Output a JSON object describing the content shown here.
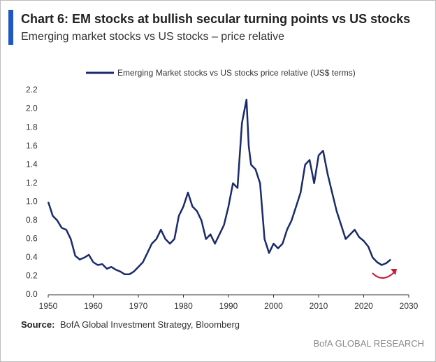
{
  "chart_data": {
    "type": "line",
    "title": "Chart 6: EM stocks at bullish secular turning points vs US stocks",
    "subtitle": "Emerging market stocks vs US stocks – price relative",
    "source_label": "Source:",
    "source": "BofA Global Investment Strategy, Bloomberg",
    "brand": "BofA GLOBAL RESEARCH",
    "legend": "top",
    "grid": false,
    "x": [
      1950,
      1951,
      1952,
      1953,
      1954,
      1955,
      1956,
      1957,
      1958,
      1959,
      1960,
      1961,
      1962,
      1963,
      1964,
      1965,
      1966,
      1967,
      1968,
      1969,
      1970,
      1971,
      1972,
      1973,
      1974,
      1975,
      1976,
      1977,
      1978,
      1979,
      1980,
      1981,
      1982,
      1983,
      1984,
      1985,
      1986,
      1987,
      1988,
      1989,
      1990,
      1991,
      1992,
      1993,
      1994,
      1994.5,
      1995,
      1996,
      1997,
      1998,
      1999,
      2000,
      2001,
      2002,
      2003,
      2004,
      2005,
      2006,
      2007,
      2008,
      2009,
      2010,
      2011,
      2012,
      2013,
      2014,
      2015,
      2016,
      2017,
      2018,
      2019,
      2020,
      2021,
      2022,
      2023,
      2024,
      2025,
      2026
    ],
    "series": [
      {
        "name": "Emerging Market stocks vs US stocks price relative (US$ terms)",
        "color": "#1b2a6b",
        "values": [
          1.0,
          0.85,
          0.8,
          0.72,
          0.7,
          0.6,
          0.42,
          0.38,
          0.4,
          0.43,
          0.35,
          0.32,
          0.33,
          0.28,
          0.3,
          0.27,
          0.25,
          0.22,
          0.22,
          0.25,
          0.3,
          0.35,
          0.45,
          0.55,
          0.6,
          0.7,
          0.6,
          0.55,
          0.6,
          0.85,
          0.95,
          1.1,
          0.95,
          0.9,
          0.8,
          0.6,
          0.65,
          0.55,
          0.65,
          0.75,
          0.95,
          1.2,
          1.15,
          1.85,
          2.1,
          1.6,
          1.4,
          1.35,
          1.2,
          0.6,
          0.45,
          0.55,
          0.5,
          0.55,
          0.7,
          0.8,
          0.95,
          1.1,
          1.4,
          1.45,
          1.2,
          1.5,
          1.55,
          1.3,
          1.1,
          0.9,
          0.75,
          0.6,
          0.65,
          0.7,
          0.62,
          0.58,
          0.52,
          0.4,
          0.35,
          0.32,
          0.34,
          0.38
        ]
      }
    ],
    "xlim": [
      1950,
      2030
    ],
    "xticks": [
      1950,
      1960,
      1970,
      1980,
      1990,
      2000,
      2010,
      2020,
      2030
    ],
    "ylim": [
      0,
      2.2
    ],
    "yticks": [
      {
        "value": 0,
        "label": "0.0"
      },
      0.2,
      0.4,
      0.6,
      0.8,
      {
        "value": 1,
        "label": "1.0"
      },
      1.2,
      1.4,
      1.6,
      1.8,
      {
        "value": 2,
        "label": "2.0"
      },
      2.2
    ]
  }
}
